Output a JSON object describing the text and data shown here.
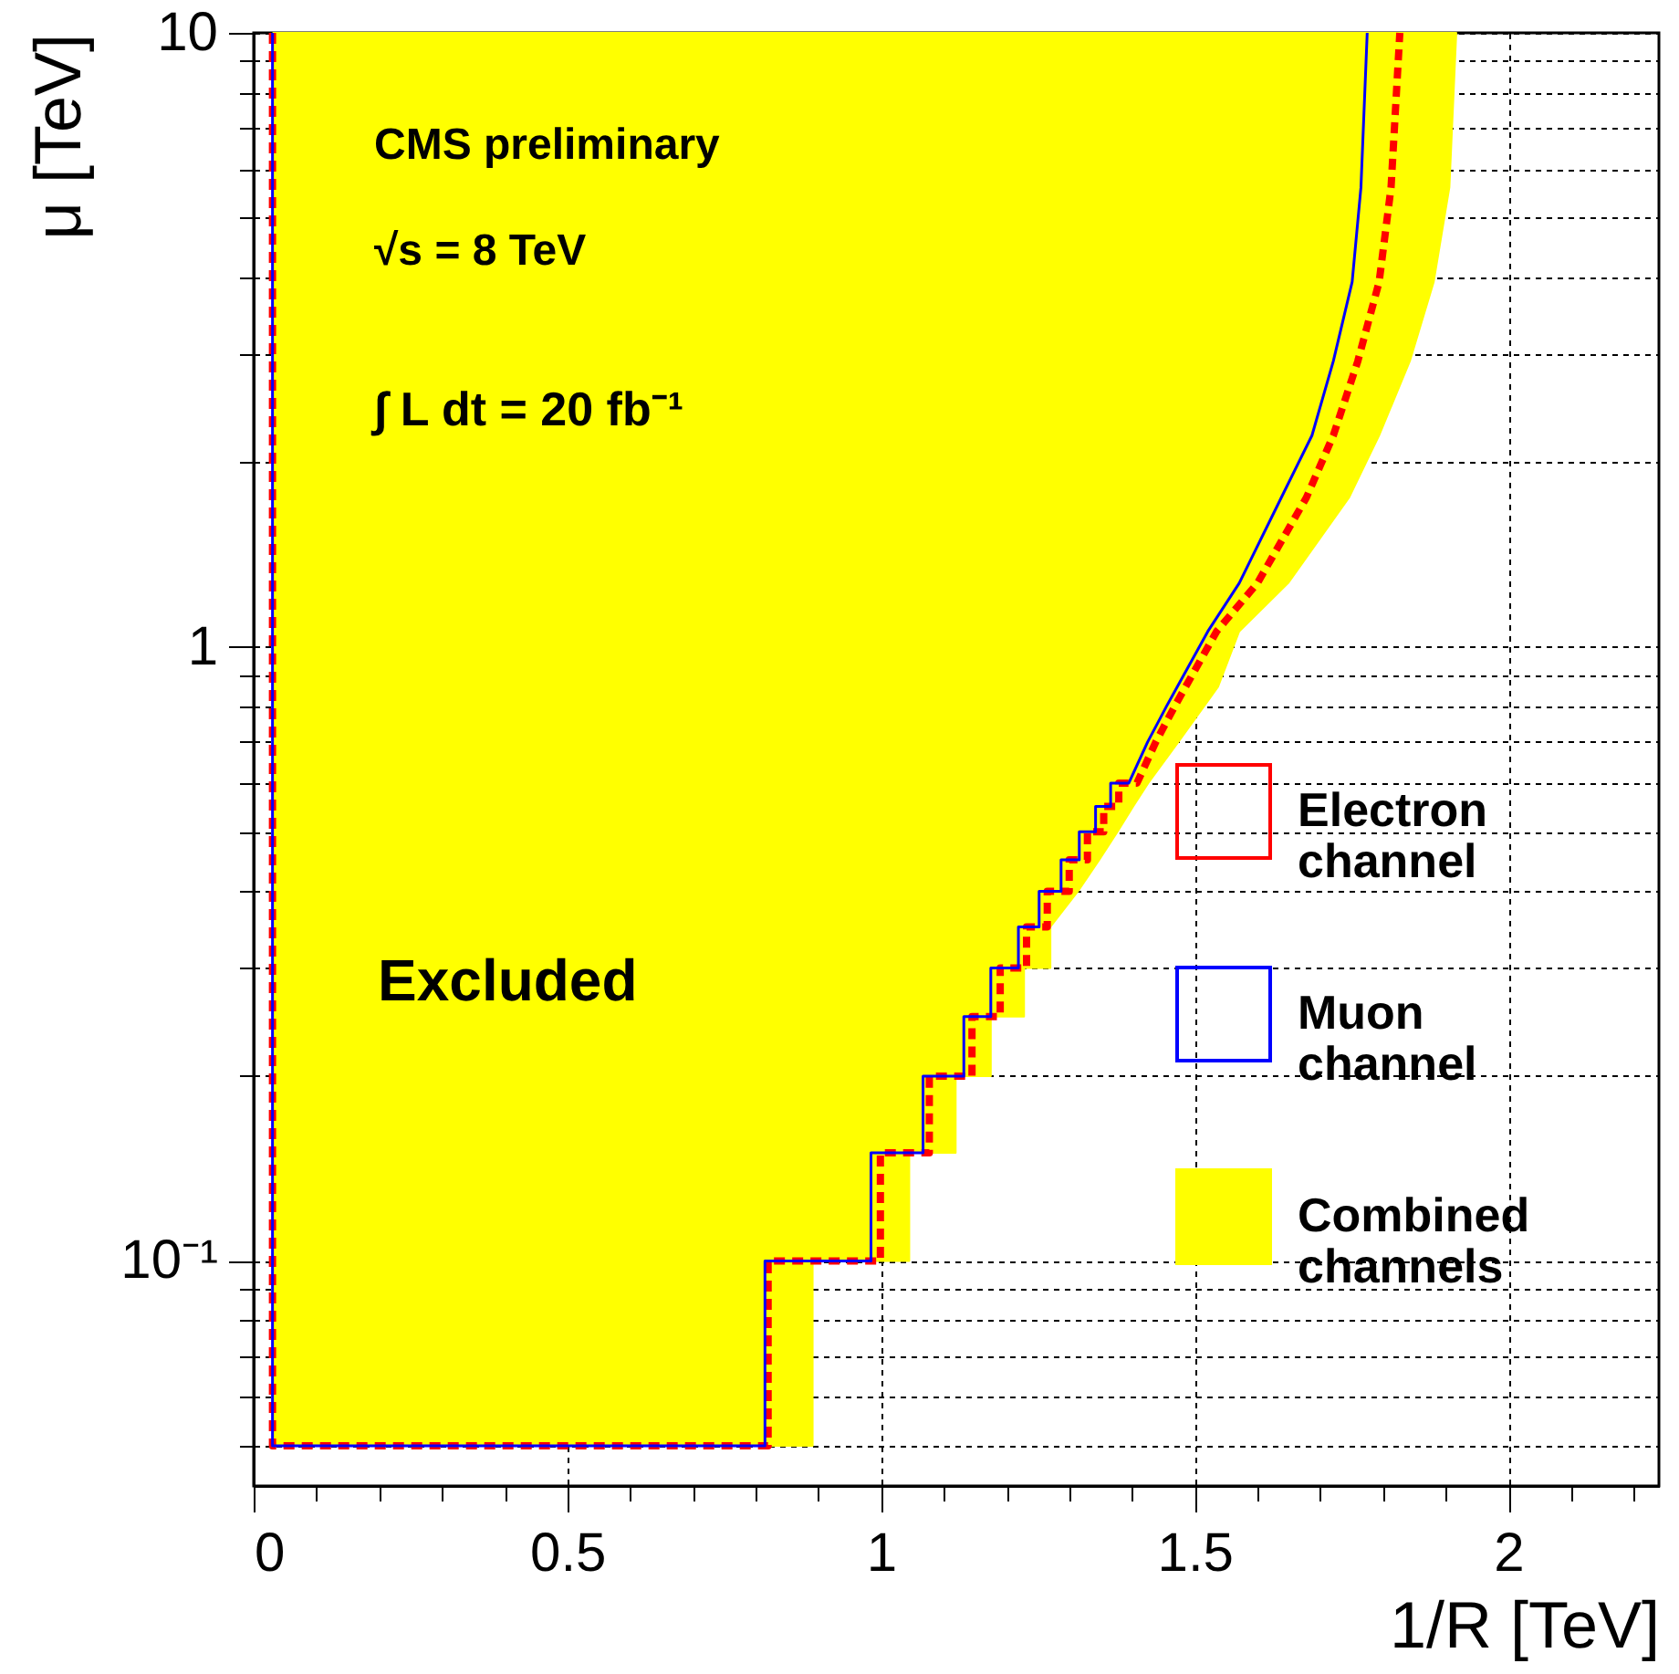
{
  "chart_data": {
    "type": "line",
    "xlabel": "1/R [TeV]",
    "ylabel": "μ [TeV]",
    "log": "y",
    "grid": true,
    "legend": "right",
    "xlim": [
      0,
      2.24
    ],
    "ylim": [
      0.043,
      10
    ],
    "xticks": [
      0,
      {
        "value": 0.1,
        "label": null
      },
      {
        "value": 0.2,
        "label": null
      },
      {
        "value": 0.3,
        "label": null
      },
      {
        "value": 0.4,
        "label": null
      },
      0.5,
      {
        "value": 0.6,
        "label": null
      },
      {
        "value": 0.7,
        "label": null
      },
      {
        "value": 0.8,
        "label": null
      },
      {
        "value": 0.9,
        "label": null
      },
      1,
      {
        "value": 1.1,
        "label": null
      },
      {
        "value": 1.2,
        "label": null
      },
      {
        "value": 1.3,
        "label": null
      },
      {
        "value": 1.4,
        "label": null
      },
      1.5,
      {
        "value": 1.6,
        "label": null
      },
      {
        "value": 1.7,
        "label": null
      },
      {
        "value": 1.8,
        "label": null
      },
      {
        "value": 1.9,
        "label": null
      },
      2,
      {
        "value": 2.1,
        "label": null
      },
      {
        "value": 2.2,
        "label": null
      }
    ],
    "yticks": [
      {
        "value": 0.05,
        "label": null
      },
      {
        "value": 0.06,
        "label": null
      },
      {
        "value": 0.07,
        "label": null
      },
      {
        "value": 0.08,
        "label": null
      },
      {
        "value": 0.09,
        "label": null
      },
      {
        "value": 0.1,
        "label": "10⁻¹"
      },
      {
        "value": 0.2,
        "label": null
      },
      {
        "value": 0.3,
        "label": null
      },
      {
        "value": 0.4,
        "label": null
      },
      {
        "value": 0.5,
        "label": null
      },
      {
        "value": 0.6,
        "label": null
      },
      {
        "value": 0.7,
        "label": null
      },
      {
        "value": 0.8,
        "label": null
      },
      {
        "value": 0.9,
        "label": null
      },
      1,
      {
        "value": 2,
        "label": null
      },
      {
        "value": 3,
        "label": null
      },
      {
        "value": 4,
        "label": null
      },
      {
        "value": 5,
        "label": null
      },
      {
        "value": 6,
        "label": null
      },
      {
        "value": 7,
        "label": null
      },
      {
        "value": 8,
        "label": null
      },
      {
        "value": 9,
        "label": null
      },
      10
    ],
    "annotations": [
      "CMS preliminary",
      "√s = 8 TeV",
      "∫ L dt = 20 fb⁻¹",
      "Excluded"
    ],
    "series": [
      {
        "name": "Electron channel",
        "type": "line",
        "line_style": "dashed",
        "color": "#ff0000",
        "x": [
          0.03,
          0.03,
          0.82,
          0.82,
          0.999,
          0.999,
          1.077,
          1.077,
          1.145,
          1.145,
          1.19,
          1.19,
          1.232,
          1.232,
          1.265,
          1.265,
          1.3,
          1.3,
          1.329,
          1.329,
          1.355,
          1.355,
          1.379,
          1.379,
          1.408,
          1.438,
          1.468,
          1.535,
          1.6,
          1.678,
          1.721,
          1.76,
          1.794,
          1.813,
          1.827
        ],
        "values": [
          10,
          0.05,
          0.05,
          0.1,
          0.1,
          0.15,
          0.15,
          0.2,
          0.2,
          0.25,
          0.25,
          0.3,
          0.3,
          0.35,
          0.35,
          0.4,
          0.4,
          0.45,
          0.45,
          0.5,
          0.5,
          0.55,
          0.55,
          0.6,
          0.6,
          0.7,
          0.8,
          1.06,
          1.27,
          1.75,
          2.21,
          2.92,
          3.93,
          5.6,
          10
        ]
      },
      {
        "name": "Muon channel",
        "type": "line",
        "line_style": "solid",
        "color": "#0000ff",
        "x": [
          0.03,
          0.03,
          0.815,
          0.815,
          0.984,
          0.984,
          1.067,
          1.067,
          1.132,
          1.132,
          1.175,
          1.175,
          1.219,
          1.219,
          1.252,
          1.252,
          1.287,
          1.287,
          1.316,
          1.316,
          1.342,
          1.342,
          1.366,
          1.366,
          1.395,
          1.425,
          1.455,
          1.521,
          1.571,
          1.638,
          1.687,
          1.721,
          1.751,
          1.765,
          1.775
        ],
        "values": [
          10,
          0.05,
          0.05,
          0.1,
          0.1,
          0.15,
          0.15,
          0.2,
          0.2,
          0.25,
          0.25,
          0.3,
          0.3,
          0.35,
          0.35,
          0.4,
          0.4,
          0.45,
          0.45,
          0.5,
          0.5,
          0.55,
          0.55,
          0.6,
          0.6,
          0.7,
          0.8,
          1.06,
          1.27,
          1.75,
          2.21,
          2.92,
          3.93,
          5.6,
          10
        ]
      },
      {
        "name": "Combined channels",
        "type": "area",
        "color": "#ffff00",
        "x": [
          0.03,
          0.891,
          0.891,
          1.045,
          1.045,
          1.119,
          1.119,
          1.175,
          1.175,
          1.228,
          1.228,
          1.27,
          1.27,
          1.314,
          1.348,
          1.377,
          1.402,
          1.426,
          1.474,
          1.537,
          1.571,
          1.649,
          1.746,
          1.794,
          1.843,
          1.881,
          1.906,
          1.917,
          0.03
        ],
        "values": [
          0.05,
          0.05,
          0.1,
          0.1,
          0.15,
          0.15,
          0.2,
          0.2,
          0.25,
          0.25,
          0.3,
          0.3,
          0.35,
          0.4,
          0.45,
          0.5,
          0.55,
          0.6,
          0.7,
          0.86,
          1.06,
          1.27,
          1.75,
          2.21,
          2.92,
          3.93,
          5.6,
          10,
          10
        ]
      }
    ]
  }
}
